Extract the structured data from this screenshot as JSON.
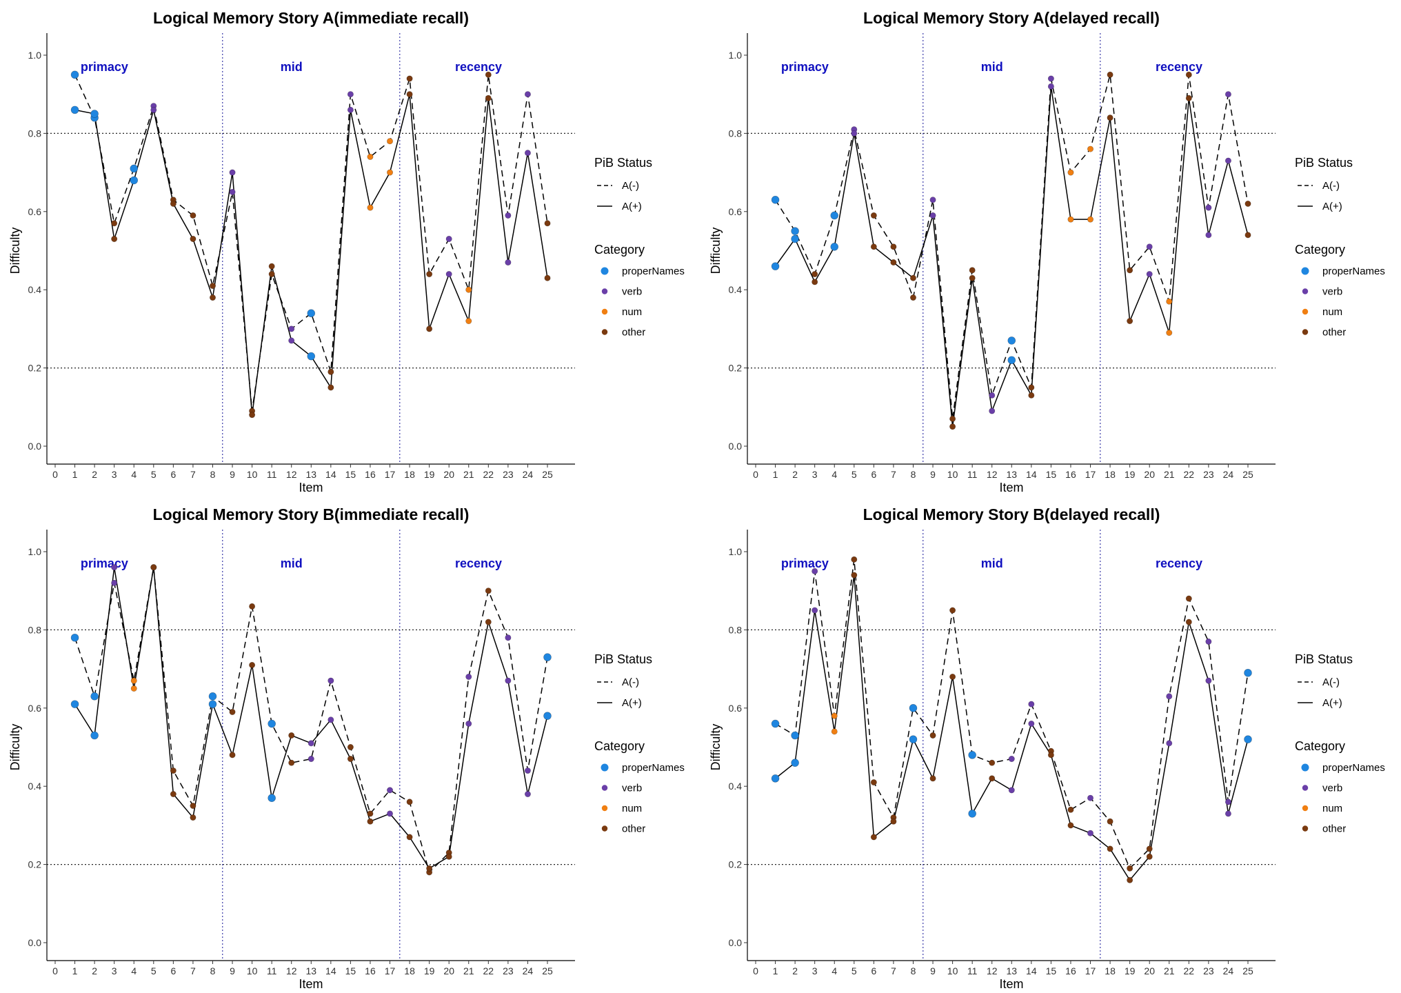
{
  "chart_data": [
    {
      "type": "line",
      "title": "Logical Memory Story A(immediate recall)",
      "xlabel": "Item",
      "ylabel": "Difficulty",
      "xlim": [
        0,
        25
      ],
      "ylim": [
        0.0,
        1.0
      ],
      "x_ticks": [
        "0",
        "1",
        "2",
        "3",
        "4",
        "5",
        "6",
        "7",
        "8",
        "9",
        "10",
        "11",
        "12",
        "13",
        "14",
        "15",
        "16",
        "17",
        "18",
        "19",
        "20",
        "21",
        "22",
        "23",
        "24",
        "25"
      ],
      "y_ticks": [
        "0.0",
        "0.2",
        "0.4",
        "0.6",
        "0.8",
        "1.0"
      ],
      "regions": [
        "primacy",
        "mid",
        "recency"
      ],
      "x": [
        1,
        2,
        3,
        4,
        5,
        6,
        7,
        8,
        9,
        10,
        11,
        12,
        13,
        14,
        15,
        16,
        17,
        18,
        19,
        20,
        21,
        22,
        23,
        24,
        25
      ],
      "categories_per_item": [
        "properNames",
        "properNames",
        "other",
        "properNames",
        "verb",
        "other",
        "other",
        "other",
        "verb",
        "other",
        "other",
        "verb",
        "properNames",
        "other",
        "verb",
        "num",
        "num",
        "other",
        "other",
        "verb",
        "num",
        "other",
        "verb",
        "verb",
        "other"
      ],
      "series": [
        {
          "name": "A(-)",
          "values": [
            0.95,
            0.84,
            0.57,
            0.71,
            0.87,
            0.63,
            0.59,
            0.41,
            0.65,
            0.09,
            0.44,
            0.3,
            0.34,
            0.19,
            0.9,
            0.74,
            0.78,
            0.94,
            0.44,
            0.53,
            0.4,
            0.95,
            0.59,
            0.9,
            0.57
          ]
        },
        {
          "name": "A(+)",
          "values": [
            0.86,
            0.85,
            0.53,
            0.68,
            0.86,
            0.62,
            0.53,
            0.38,
            0.7,
            0.08,
            0.46,
            0.27,
            0.23,
            0.15,
            0.86,
            0.61,
            0.7,
            0.9,
            0.3,
            0.44,
            0.32,
            0.89,
            0.47,
            0.75,
            0.43
          ]
        }
      ]
    },
    {
      "type": "line",
      "title": "Logical Memory Story A(delayed recall)",
      "xlabel": "Item",
      "ylabel": "Difficulty",
      "xlim": [
        0,
        25
      ],
      "ylim": [
        0.0,
        1.0
      ],
      "x_ticks": [
        "0",
        "1",
        "2",
        "3",
        "4",
        "5",
        "6",
        "7",
        "8",
        "9",
        "10",
        "11",
        "12",
        "13",
        "14",
        "15",
        "16",
        "17",
        "18",
        "19",
        "20",
        "21",
        "22",
        "23",
        "24",
        "25"
      ],
      "y_ticks": [
        "0.0",
        "0.2",
        "0.4",
        "0.6",
        "0.8",
        "1.0"
      ],
      "regions": [
        "primacy",
        "mid",
        "recency"
      ],
      "x": [
        1,
        2,
        3,
        4,
        5,
        6,
        7,
        8,
        9,
        10,
        11,
        12,
        13,
        14,
        15,
        16,
        17,
        18,
        19,
        20,
        21,
        22,
        23,
        24,
        25
      ],
      "categories_per_item": [
        "properNames",
        "properNames",
        "other",
        "properNames",
        "verb",
        "other",
        "other",
        "other",
        "verb",
        "other",
        "other",
        "verb",
        "properNames",
        "other",
        "verb",
        "num",
        "num",
        "other",
        "other",
        "verb",
        "num",
        "other",
        "verb",
        "verb",
        "other"
      ],
      "series": [
        {
          "name": "A(-)",
          "values": [
            0.63,
            0.55,
            0.44,
            0.59,
            0.81,
            0.59,
            0.51,
            0.38,
            0.63,
            0.07,
            0.45,
            0.13,
            0.27,
            0.15,
            0.94,
            0.7,
            0.76,
            0.95,
            0.45,
            0.51,
            0.37,
            0.95,
            0.61,
            0.9,
            0.62
          ]
        },
        {
          "name": "A(+)",
          "values": [
            0.46,
            0.53,
            0.42,
            0.51,
            0.8,
            0.51,
            0.47,
            0.43,
            0.59,
            0.05,
            0.43,
            0.09,
            0.22,
            0.13,
            0.92,
            0.58,
            0.58,
            0.84,
            0.32,
            0.44,
            0.29,
            0.89,
            0.54,
            0.73,
            0.54
          ]
        }
      ]
    },
    {
      "type": "line",
      "title": "Logical Memory Story B(immediate recall)",
      "xlabel": "Item",
      "ylabel": "Difficulty",
      "xlim": [
        0,
        25
      ],
      "ylim": [
        0.0,
        1.0
      ],
      "x_ticks": [
        "0",
        "1",
        "2",
        "3",
        "4",
        "5",
        "6",
        "7",
        "8",
        "9",
        "10",
        "11",
        "12",
        "13",
        "14",
        "15",
        "16",
        "17",
        "18",
        "19",
        "20",
        "21",
        "22",
        "23",
        "24",
        "25"
      ],
      "y_ticks": [
        "0.0",
        "0.2",
        "0.4",
        "0.6",
        "0.8",
        "1.0"
      ],
      "regions": [
        "primacy",
        "mid",
        "recency"
      ],
      "x": [
        1,
        2,
        3,
        4,
        5,
        6,
        7,
        8,
        9,
        10,
        11,
        12,
        13,
        14,
        15,
        16,
        17,
        18,
        19,
        20,
        21,
        22,
        23,
        24,
        25
      ],
      "categories_per_item": [
        "properNames",
        "properNames",
        "verb",
        "num",
        "other",
        "other",
        "other",
        "properNames",
        "other",
        "other",
        "properNames",
        "other",
        "verb",
        "verb",
        "other",
        "other",
        "verb",
        "other",
        "other",
        "other",
        "verb",
        "other",
        "verb",
        "verb",
        "properNames"
      ],
      "series": [
        {
          "name": "A(-)",
          "values": [
            0.78,
            0.63,
            0.92,
            0.67,
            0.96,
            0.44,
            0.35,
            0.63,
            0.59,
            0.86,
            0.56,
            0.46,
            0.47,
            0.67,
            0.5,
            0.33,
            0.39,
            0.36,
            0.18,
            0.23,
            0.68,
            0.9,
            0.78,
            0.44,
            0.73
          ]
        },
        {
          "name": "A(+)",
          "values": [
            0.61,
            0.53,
            0.96,
            0.65,
            0.96,
            0.38,
            0.32,
            0.61,
            0.48,
            0.71,
            0.37,
            0.53,
            0.51,
            0.57,
            0.47,
            0.31,
            0.33,
            0.27,
            0.19,
            0.22,
            0.56,
            0.82,
            0.67,
            0.38,
            0.58
          ]
        }
      ]
    },
    {
      "type": "line",
      "title": "Logical Memory Story B(delayed recall)",
      "xlabel": "Item",
      "ylabel": "Difficulty",
      "xlim": [
        0,
        25
      ],
      "ylim": [
        0.0,
        1.0
      ],
      "x_ticks": [
        "0",
        "1",
        "2",
        "3",
        "4",
        "5",
        "6",
        "7",
        "8",
        "9",
        "10",
        "11",
        "12",
        "13",
        "14",
        "15",
        "16",
        "17",
        "18",
        "19",
        "20",
        "21",
        "22",
        "23",
        "24",
        "25"
      ],
      "y_ticks": [
        "0.0",
        "0.2",
        "0.4",
        "0.6",
        "0.8",
        "1.0"
      ],
      "regions": [
        "primacy",
        "mid",
        "recency"
      ],
      "x": [
        1,
        2,
        3,
        4,
        5,
        6,
        7,
        8,
        9,
        10,
        11,
        12,
        13,
        14,
        15,
        16,
        17,
        18,
        19,
        20,
        21,
        22,
        23,
        24,
        25
      ],
      "categories_per_item": [
        "properNames",
        "properNames",
        "verb",
        "num",
        "other",
        "other",
        "other",
        "properNames",
        "other",
        "other",
        "properNames",
        "other",
        "verb",
        "verb",
        "other",
        "other",
        "verb",
        "other",
        "other",
        "other",
        "verb",
        "other",
        "verb",
        "verb",
        "properNames"
      ],
      "series": [
        {
          "name": "A(-)",
          "values": [
            0.56,
            0.53,
            0.95,
            0.58,
            0.98,
            0.41,
            0.32,
            0.6,
            0.53,
            0.85,
            0.48,
            0.46,
            0.47,
            0.61,
            0.49,
            0.34,
            0.37,
            0.31,
            0.19,
            0.24,
            0.63,
            0.88,
            0.77,
            0.36,
            0.69
          ]
        },
        {
          "name": "A(+)",
          "values": [
            0.42,
            0.46,
            0.85,
            0.54,
            0.94,
            0.27,
            0.31,
            0.52,
            0.42,
            0.68,
            0.33,
            0.42,
            0.39,
            0.56,
            0.48,
            0.3,
            0.28,
            0.24,
            0.16,
            0.22,
            0.51,
            0.82,
            0.67,
            0.33,
            0.52
          ]
        }
      ]
    }
  ],
  "legend": {
    "pib_title": "PiB Status",
    "pib_items": [
      "A(-)",
      "A(+)"
    ],
    "category_title": "Category",
    "category_items": [
      "properNames",
      "verb",
      "num",
      "other"
    ]
  },
  "colors": {
    "properNames": "#1f86e0",
    "verb": "#6a3fa8",
    "num": "#f07f12",
    "other": "#7a3a10",
    "region_label": "#1010c0",
    "region_divider": "#3a3aa8"
  }
}
